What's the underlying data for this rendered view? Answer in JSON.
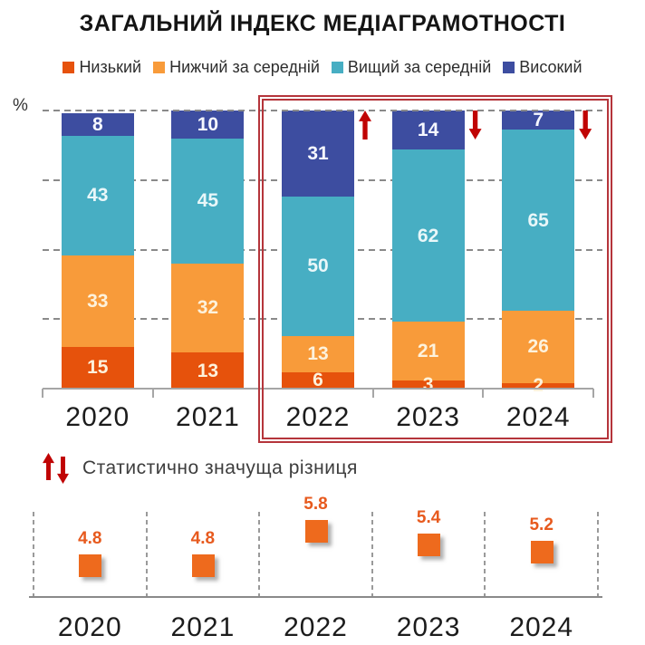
{
  "title": "ЗАГАЛЬНИЙ ІНДЕКС МЕДІАГРАМОТНОСТІ",
  "axis_unit_label": "%",
  "legend": [
    {
      "label": "Низький",
      "color": "#e6520c"
    },
    {
      "label": "Нижчий за середній",
      "color": "#f89b3a"
    },
    {
      "label": "Вищий за середній",
      "color": "#47aec3"
    },
    {
      "label": "Високий",
      "color": "#3d4da0"
    }
  ],
  "significance_note": {
    "text": "Статистично значуща різниця",
    "icons": [
      "up-arrow",
      "down-arrow"
    ]
  },
  "colors": {
    "significance_red": "#c00404",
    "highlight_box_red": "#b5353b",
    "axis_gray": "#a6a6a6",
    "grid_gray": "#8a8a8a"
  },
  "chart_data": [
    {
      "type": "bar",
      "stacked": true,
      "normalized": "100%",
      "unit": "%",
      "title": "ЗАГАЛЬНИЙ ІНДЕКС МЕДІАГРАМОТНОСТІ",
      "categories": [
        "2020",
        "2021",
        "2022",
        "2023",
        "2024"
      ],
      "series": [
        {
          "name": "Низький",
          "color": "#e6520c",
          "values": [
            15,
            13,
            6,
            3,
            2
          ]
        },
        {
          "name": "Нижчий за середній",
          "color": "#f89b3a",
          "values": [
            33,
            32,
            13,
            21,
            26
          ]
        },
        {
          "name": "Вищий за середній",
          "color": "#47aec3",
          "values": [
            43,
            45,
            50,
            62,
            65
          ]
        },
        {
          "name": "Високий",
          "color": "#3d4da0",
          "values": [
            8,
            10,
            31,
            14,
            7
          ]
        }
      ],
      "ylim": [
        0,
        100
      ],
      "gridlines": [
        25,
        50,
        75,
        100
      ],
      "grid": "dashed",
      "legend_position": "top",
      "highlight": {
        "from": "2022",
        "to": "2024",
        "style": "red-double-rectangle"
      },
      "significance": [
        {
          "category": "2022",
          "direction": "up"
        },
        {
          "category": "2023",
          "direction": "down"
        },
        {
          "category": "2024",
          "direction": "down"
        }
      ]
    },
    {
      "type": "scatter",
      "marker": "square",
      "marker_color": "#ee6a1d",
      "label_color": "#e75a1e",
      "categories": [
        "2020",
        "2021",
        "2022",
        "2023",
        "2024"
      ],
      "values": [
        4.8,
        4.8,
        5.8,
        5.4,
        5.2
      ],
      "grid": "dashed-vertical-separators"
    }
  ]
}
